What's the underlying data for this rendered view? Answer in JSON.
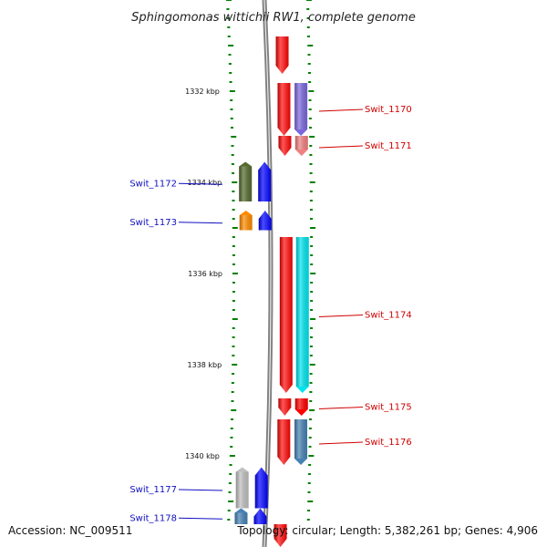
{
  "title": "Sphingomonas wittichii RW1, complete genome",
  "accession": "Accession: NC_009511",
  "topology": "Topology: circular; Length: 5,382,261 bp; Genes: 4,906",
  "scale_marks": [
    {
      "label": "1332 kbp",
      "kbp": 1332
    },
    {
      "label": "1334 kbp",
      "kbp": 1334
    },
    {
      "label": "1336 kbp",
      "kbp": 1336
    },
    {
      "label": "1338 kbp",
      "kbp": 1338
    },
    {
      "label": "1340 kbp",
      "kbp": 1340
    }
  ],
  "genes": [
    {
      "label": "Swit_1170",
      "strand": "+",
      "color": "#7b68dd",
      "start_kbp": 1331.82,
      "end_kbp": 1332.98
    },
    {
      "label": "Swit_1171",
      "strand": "+",
      "color": "#f08080",
      "start_kbp": 1332.98,
      "end_kbp": 1333.42
    },
    {
      "label": "Swit_1172",
      "strand": "-",
      "color": "#556b2f",
      "start_kbp": 1333.55,
      "end_kbp": 1334.42
    },
    {
      "label": "Swit_1173",
      "strand": "-",
      "color": "#ff8c00",
      "start_kbp": 1334.62,
      "end_kbp": 1335.05
    },
    {
      "label": "Swit_1174",
      "strand": "+",
      "color": "#00e5ee",
      "start_kbp": 1335.2,
      "end_kbp": 1338.62
    },
    {
      "label": "Swit_1175",
      "strand": "+",
      "color": "#ff0000",
      "start_kbp": 1338.74,
      "end_kbp": 1339.12
    },
    {
      "label": "Swit_1176",
      "strand": "+",
      "color": "#4682b4",
      "start_kbp": 1339.2,
      "end_kbp": 1340.2
    },
    {
      "label": "Swit_1177",
      "strand": "-",
      "color": "#c0c0c0",
      "start_kbp": 1340.25,
      "end_kbp": 1341.15
    },
    {
      "label": "Swit_1178",
      "strand": "-",
      "color": "#4682b4",
      "start_kbp": 1341.15,
      "end_kbp": 1341.5
    }
  ],
  "colors": {
    "forward_cds": "#ff0000",
    "reverse_cds": "#0000ff",
    "backbone": "#808080",
    "tick": "#008000",
    "forward_label": "#d00000",
    "reverse_label": "#1010c0"
  }
}
